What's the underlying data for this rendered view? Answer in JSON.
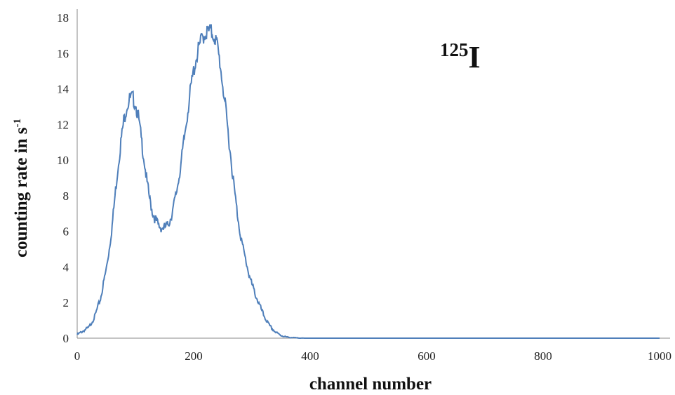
{
  "chart_data": {
    "type": "line",
    "xlabel": "channel number",
    "ylabel": {
      "main": "counting rate in s",
      "sup": "-1"
    },
    "annotation": {
      "sup": "125",
      "base": "I"
    },
    "xlim": [
      0,
      1000
    ],
    "ylim": [
      0,
      18
    ],
    "xticks": [
      0,
      200,
      400,
      600,
      800,
      1000
    ],
    "yticks": [
      0,
      2,
      4,
      6,
      8,
      10,
      12,
      14,
      16,
      18
    ],
    "grid": false,
    "legend": "none",
    "line_color": "#4f7fba",
    "series": [
      {
        "x": [
          0,
          10,
          20,
          30,
          40,
          50,
          55,
          60,
          65,
          70,
          75,
          80,
          85,
          90,
          95,
          100,
          105,
          110,
          115,
          120,
          125,
          130,
          135,
          140,
          145,
          150,
          155,
          160,
          165,
          170,
          175,
          180,
          185,
          190,
          195,
          200,
          205,
          210,
          215,
          220,
          225,
          230,
          235,
          240,
          245,
          250,
          255,
          260,
          265,
          270,
          275,
          280,
          285,
          290,
          295,
          300,
          310,
          320,
          330,
          340,
          350,
          360,
          370,
          380,
          390,
          400,
          450,
          500,
          550,
          600,
          650,
          700,
          750,
          800,
          850,
          900,
          950,
          1000
        ],
        "y": [
          0.2,
          0.4,
          0.6,
          1.2,
          2.2,
          3.9,
          5.0,
          6.3,
          8.0,
          9.6,
          11.0,
          12.2,
          13.0,
          13.4,
          13.5,
          13.2,
          12.4,
          11.2,
          10.0,
          8.7,
          7.7,
          7.0,
          6.6,
          6.3,
          6.2,
          6.2,
          6.3,
          6.7,
          7.3,
          8.1,
          9.1,
          10.2,
          11.5,
          12.8,
          14.0,
          15.0,
          15.8,
          16.4,
          16.9,
          17.1,
          17.2,
          17.2,
          17.0,
          16.5,
          15.5,
          14.2,
          12.8,
          11.3,
          9.8,
          8.3,
          7.0,
          5.9,
          5.0,
          4.3,
          3.6,
          3.0,
          2.1,
          1.3,
          0.7,
          0.35,
          0.15,
          0.06,
          0.03,
          0.01,
          0.0,
          0.0,
          0.0,
          0.0,
          0.0,
          0.0,
          0.0,
          0.0,
          0.0,
          0.0,
          0.0,
          0.0,
          0.0,
          0.0
        ]
      }
    ]
  }
}
